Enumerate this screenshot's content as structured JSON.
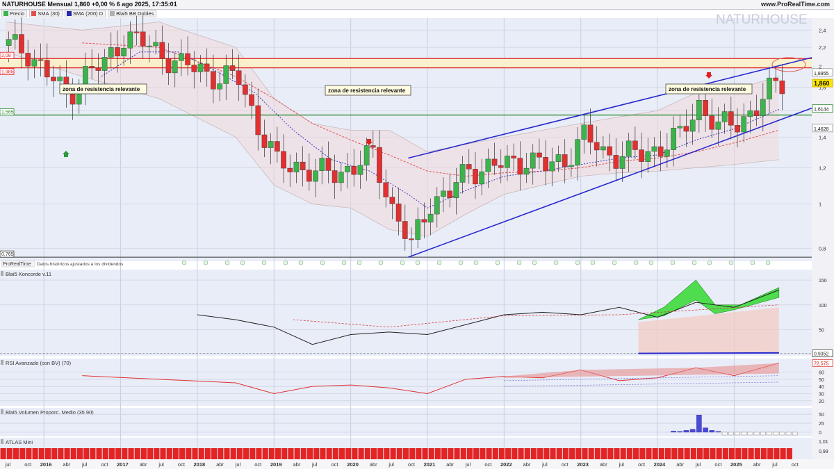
{
  "header": {
    "title": "NATURHOUSE Mensual 1,860 +0,00 % 6 ago 2025, 17:35:01",
    "site": "www.ProRealTime.com",
    "watermark": "NATURHOUSE"
  },
  "legend": [
    {
      "label": "Precio",
      "color": "#3cb44b"
    },
    {
      "label": "SMA",
      "params": "(30)",
      "color": "#e05050"
    },
    {
      "label": "SMA",
      "params": "(200) D",
      "color": "#2a2aa8"
    },
    {
      "label": "Blai5 BB Dobles",
      "color": "#b0b0b0"
    }
  ],
  "annotations": {
    "resistance_text": "zona de resistencia relevante",
    "source_label": "ProRealTime",
    "source_note": "Datos históricos ajustados a los dividendos"
  },
  "price_tags": {
    "left": [
      "2,08",
      "1,985",
      "1,565",
      "0,765"
    ],
    "right": [
      "1,8955",
      "1,860",
      "1,6144",
      "1,4628"
    ]
  },
  "y_axis_ticks": [
    "2,4",
    "2,2",
    "2",
    "1,8",
    "1,6",
    "1,4",
    "1,2",
    "1",
    "0,8"
  ],
  "x_axis_labels": [
    "jul",
    "oct",
    "2016",
    "abr",
    "jul",
    "oct",
    "2017",
    "abr",
    "jul",
    "oct",
    "2018",
    "abr",
    "jul",
    "oct",
    "2019",
    "abr",
    "jul",
    "oct",
    "2020",
    "abr",
    "jul",
    "oct",
    "2021",
    "abr",
    "jul",
    "oct",
    "2022",
    "abr",
    "jul",
    "oct",
    "2023",
    "abr",
    "jul",
    "oct",
    "2024",
    "abr",
    "jul",
    "oct",
    "2025",
    "abr",
    "jul",
    "oct"
  ],
  "panels": {
    "koncorde": {
      "title": "Blai5 Koncorde v.11",
      "last_value": "0,9352",
      "ticks": [
        "150",
        "100",
        "50"
      ]
    },
    "rsi": {
      "title": "RSI Avanzado (con BV)",
      "params": "(70)",
      "last_value": "72,575",
      "ticks": [
        "60",
        "50",
        "40",
        "30",
        "20"
      ]
    },
    "volume": {
      "title": "Blai5 Volumen Proporc. Medio",
      "params": "(35 90)",
      "ticks": [
        "50",
        "25",
        "0"
      ]
    },
    "atlas": {
      "title": "ATLAS Mini",
      "ticks": [
        "1,01",
        "0,99"
      ]
    }
  },
  "colors": {
    "up": "#3cb44b",
    "down": "#e03030",
    "resistance_line": "#e02020",
    "support_line": "#2e8b2e",
    "channel": "#2a2acf",
    "sma30": "#e05050",
    "sma200": "#3a3ac0",
    "last_price": "#ffe600"
  },
  "chart_data": [
    {
      "type": "candlestick",
      "title": "NATURHOUSE Mensual",
      "timeframe": "monthly",
      "ylim": [
        0.765,
        2.5
      ],
      "y_scale": "log",
      "xlim": [
        "2015-07",
        "2025-11"
      ],
      "last": 1.86,
      "levels": {
        "resistance_upper": 2.08,
        "resistance_lower": 1.985,
        "support": 1.565,
        "low": 0.765
      },
      "right_markers": {
        "bb_upper": 1.8955,
        "last": 1.86,
        "sma": 1.6144,
        "bb_lower": 1.4628
      },
      "channel": {
        "upper": [
          [
            "2020-10",
            1.26
          ],
          [
            "2025-08",
            2.08
          ]
        ],
        "lower": [
          [
            "2020-10",
            0.765
          ],
          [
            "2025-08",
            1.64
          ]
        ]
      },
      "candles_approx_close": [
        [
          "2015-07",
          2.22
        ],
        [
          "2015-10",
          2.16
        ],
        [
          "2016-01",
          1.92
        ],
        [
          "2016-04",
          1.72
        ],
        [
          "2016-07",
          1.92
        ],
        [
          "2016-10",
          2.02
        ],
        [
          "2017-01",
          2.34
        ],
        [
          "2017-04",
          2.24
        ],
        [
          "2017-07",
          2.14
        ],
        [
          "2017-10",
          2.0
        ],
        [
          "2018-01",
          1.98
        ],
        [
          "2018-04",
          1.88
        ],
        [
          "2018-07",
          1.88
        ],
        [
          "2018-10",
          1.48
        ],
        [
          "2019-01",
          1.22
        ],
        [
          "2019-04",
          1.22
        ],
        [
          "2019-07",
          1.16
        ],
        [
          "2019-10",
          1.18
        ],
        [
          "2020-01",
          1.2
        ],
        [
          "2020-04",
          1.28
        ],
        [
          "2020-07",
          0.98
        ],
        [
          "2020-10",
          0.8
        ],
        [
          "2021-01",
          1.02
        ],
        [
          "2021-04",
          1.05
        ],
        [
          "2021-07",
          1.2
        ],
        [
          "2021-10",
          1.2
        ],
        [
          "2022-01",
          1.22
        ],
        [
          "2022-04",
          1.26
        ],
        [
          "2022-07",
          1.2
        ],
        [
          "2022-10",
          1.26
        ],
        [
          "2023-01",
          1.4
        ],
        [
          "2023-04",
          1.3
        ],
        [
          "2023-07",
          1.28
        ],
        [
          "2023-10",
          1.28
        ],
        [
          "2024-01",
          1.34
        ],
        [
          "2024-04",
          1.4
        ],
        [
          "2024-07",
          1.66
        ],
        [
          "2024-10",
          1.46
        ],
        [
          "2025-01",
          1.52
        ],
        [
          "2025-04",
          1.62
        ],
        [
          "2025-07",
          1.82
        ],
        [
          "2025-08",
          1.86
        ]
      ]
    },
    {
      "type": "line",
      "title": "Blai5 Koncorde v.11",
      "last": 0.9352,
      "ylim": [
        0,
        160
      ],
      "x": [
        "2018-01",
        "2018-07",
        "2019-01",
        "2019-07",
        "2020-01",
        "2020-07",
        "2021-01",
        "2021-07",
        "2022-01",
        "2022-07",
        "2023-01",
        "2023-07",
        "2024-01",
        "2024-07",
        "2025-01",
        "2025-08"
      ],
      "series": [
        {
          "values": [
            80,
            70,
            55,
            20,
            40,
            45,
            40,
            60,
            80,
            85,
            80,
            95,
            75,
            105,
            95,
            130
          ]
        }
      ]
    },
    {
      "type": "line",
      "title": "RSI Avanzado (con BV)",
      "last": 72.575,
      "ylim": [
        15,
        75
      ],
      "x": [
        "2016-07",
        "2017-07",
        "2018-07",
        "2019-01",
        "2019-07",
        "2020-01",
        "2020-07",
        "2021-01",
        "2021-07",
        "2022-01",
        "2022-07",
        "2023-01",
        "2023-07",
        "2024-01",
        "2024-07",
        "2025-01",
        "2025-08"
      ],
      "series": [
        {
          "values": [
            55,
            50,
            45,
            30,
            40,
            42,
            38,
            30,
            50,
            54,
            52,
            63,
            48,
            52,
            66,
            55,
            72.575
          ]
        }
      ]
    },
    {
      "type": "bar",
      "title": "Blai5 Volumen Proporc. Medio",
      "ylim": [
        0,
        60
      ],
      "x": [
        "2024-03",
        "2024-04",
        "2024-05",
        "2024-06",
        "2024-07",
        "2024-08",
        "2024-09",
        "2024-10"
      ],
      "series": [
        {
          "values": [
            3,
            2,
            5,
            8,
            48,
            12,
            5,
            2
          ]
        }
      ]
    }
  ]
}
